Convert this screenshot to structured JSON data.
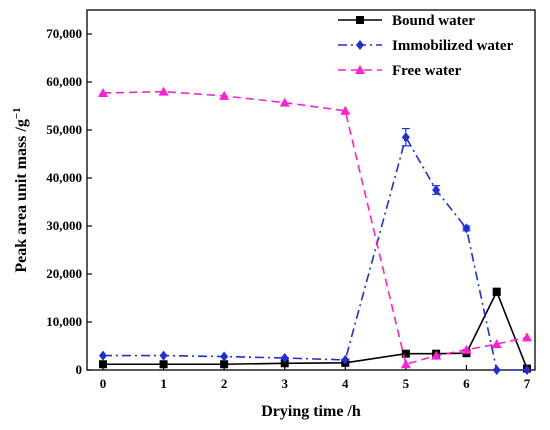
{
  "chart_data": {
    "type": "line",
    "xlabel": "Drying time /h",
    "ylabel": "Peak area unit mass /g",
    "ylabel_sup": "−1",
    "xlim": [
      0,
      7
    ],
    "ylim": [
      0,
      75000
    ],
    "xticks": [
      0,
      1,
      2,
      3,
      4,
      5,
      6,
      7
    ],
    "yticks": [
      0,
      10000,
      20000,
      30000,
      40000,
      50000,
      60000,
      70000
    ],
    "ytick_labels": [
      "0",
      "10,000",
      "20,000",
      "30,000",
      "40,000",
      "50,000",
      "60,000",
      "70,000"
    ],
    "legend_position": "top-right",
    "grid": false,
    "series": [
      {
        "name": "Bound water",
        "color": "#000000",
        "line_style": "solid",
        "marker": "square",
        "x": [
          0,
          1,
          2,
          3,
          4,
          5,
          5.5,
          6,
          6.5,
          7
        ],
        "y": [
          1200,
          1200,
          1200,
          1400,
          1500,
          3400,
          3400,
          3500,
          16300,
          300
        ],
        "err": [
          0,
          0,
          0,
          0,
          0,
          0,
          0,
          0,
          700,
          0
        ]
      },
      {
        "name": "Immobilized water",
        "color": "#1f2fd6",
        "line_style": "dashdot",
        "marker": "diamond",
        "x": [
          0,
          1,
          2,
          3,
          4,
          5,
          5.5,
          6,
          6.5,
          7
        ],
        "y": [
          3000,
          3000,
          2800,
          2500,
          2100,
          48500,
          37500,
          29500,
          0,
          0
        ],
        "err": [
          0,
          0,
          0,
          0,
          0,
          1800,
          900,
          500,
          0,
          0
        ]
      },
      {
        "name": "Free water",
        "color": "#ff1fd4",
        "line_style": "dashed",
        "marker": "triangle",
        "x": [
          0,
          1,
          2,
          3,
          4,
          5,
          5.5,
          6,
          6.5,
          7
        ],
        "y": [
          57700,
          58000,
          57100,
          55700,
          54000,
          1200,
          3000,
          4200,
          5400,
          6800
        ],
        "err": [
          0,
          0,
          0,
          0,
          0,
          0,
          0,
          0,
          0,
          0
        ]
      }
    ]
  }
}
